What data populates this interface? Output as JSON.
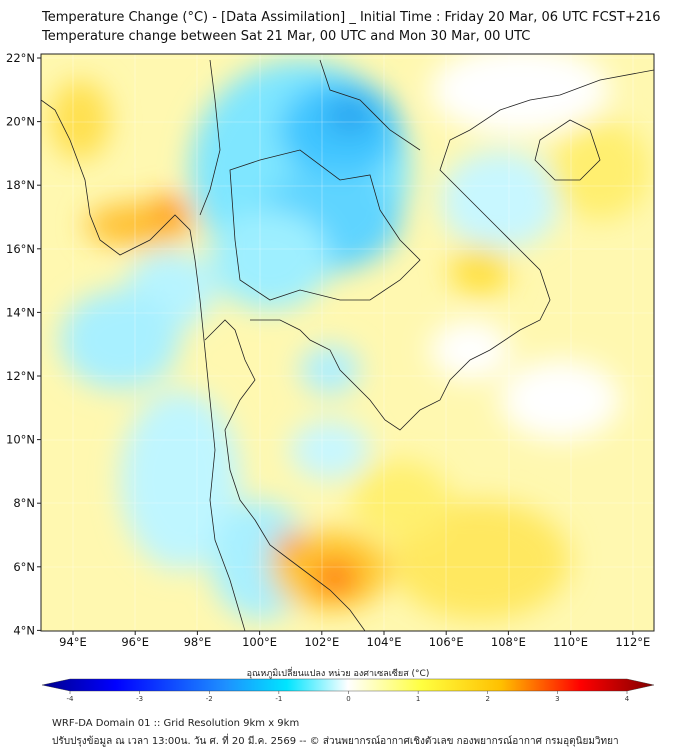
{
  "title_line1": "Temperature Change (°C) - [Data Assimilation] _ Initial Time : Friday 20 Mar, 06 UTC FCST+216",
  "title_line2": "Temperature change between Sat 21 Mar, 00 UTC and Mon 30 Mar, 00 UTC",
  "lat_ticks": [
    "22°N",
    "20°N",
    "18°N",
    "16°N",
    "14°N",
    "12°N",
    "10°N",
    "8°N",
    "6°N",
    "4°N"
  ],
  "lon_ticks": [
    "94°E",
    "96°E",
    "98°E",
    "100°E",
    "102°E",
    "104°E",
    "106°E",
    "108°E",
    "110°E",
    "112°E"
  ],
  "colorbar": {
    "label": "อุณหภูมิเปลี่ยนแปลง หน่วย องศาเซลเซียส (°C)",
    "ticks": [
      "-4",
      "-3",
      "-2",
      "-1",
      "0",
      "1",
      "2",
      "3",
      "4"
    ],
    "range": [
      -4,
      4
    ],
    "colors": [
      "#00008b",
      "#0000ff",
      "#1e90ff",
      "#00e5ff",
      "#ffffff",
      "#ffff40",
      "#ffc000",
      "#ff0000",
      "#800000"
    ]
  },
  "footer_line1": "WRF-DA Domain 01 :: Grid Resolution 9km x 9km",
  "footer_line2": "ปรับปรุงข้อมูล ณ เวลา 13:00น. วัน ศ. ที่ 20 มี.ค. 2569 -- © ส่วนพยากรณ์อากาศเชิงตัวเลข กองพยากรณ์อากาศ กรมอุตุนิยมวิทยา"
}
